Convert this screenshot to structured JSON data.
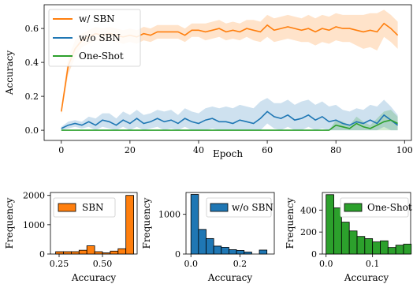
{
  "chart_data": [
    {
      "type": "line",
      "xlabel": "Epoch",
      "ylabel": "Accuracy",
      "xlim": [
        -5,
        102
      ],
      "ylim": [
        -0.06,
        0.74
      ],
      "xticks": [
        0,
        20,
        40,
        60,
        80,
        100
      ],
      "yticks": [
        0.0,
        0.2,
        0.4,
        0.6
      ],
      "legend_position": "top-left",
      "series": [
        {
          "name": "w/ SBN",
          "color": "#ff7f0e",
          "x": [
            0,
            2,
            4,
            6,
            8,
            10,
            12,
            14,
            16,
            18,
            20,
            22,
            24,
            26,
            28,
            30,
            32,
            34,
            36,
            38,
            40,
            42,
            44,
            46,
            48,
            50,
            52,
            54,
            56,
            58,
            60,
            62,
            64,
            66,
            68,
            70,
            72,
            74,
            76,
            78,
            80,
            82,
            84,
            86,
            88,
            90,
            92,
            94,
            96,
            98
          ],
          "values": [
            0.11,
            0.38,
            0.48,
            0.53,
            0.55,
            0.57,
            0.56,
            0.57,
            0.56,
            0.55,
            0.56,
            0.55,
            0.57,
            0.56,
            0.58,
            0.58,
            0.58,
            0.58,
            0.56,
            0.59,
            0.59,
            0.58,
            0.59,
            0.6,
            0.58,
            0.59,
            0.58,
            0.6,
            0.59,
            0.58,
            0.62,
            0.59,
            0.6,
            0.61,
            0.6,
            0.59,
            0.6,
            0.58,
            0.6,
            0.59,
            0.61,
            0.6,
            0.6,
            0.59,
            0.58,
            0.59,
            0.58,
            0.63,
            0.6,
            0.56
          ],
          "band_low": [
            0.09,
            0.33,
            0.43,
            0.49,
            0.51,
            0.53,
            0.52,
            0.53,
            0.52,
            0.51,
            0.52,
            0.51,
            0.53,
            0.52,
            0.54,
            0.54,
            0.54,
            0.54,
            0.52,
            0.55,
            0.55,
            0.53,
            0.54,
            0.55,
            0.53,
            0.54,
            0.53,
            0.55,
            0.53,
            0.52,
            0.55,
            0.52,
            0.53,
            0.54,
            0.53,
            0.52,
            0.52,
            0.5,
            0.52,
            0.51,
            0.53,
            0.52,
            0.52,
            0.5,
            0.48,
            0.49,
            0.47,
            0.55,
            0.52,
            0.48
          ],
          "band_high": [
            0.13,
            0.43,
            0.53,
            0.57,
            0.59,
            0.61,
            0.6,
            0.61,
            0.6,
            0.59,
            0.6,
            0.59,
            0.61,
            0.6,
            0.62,
            0.62,
            0.62,
            0.62,
            0.6,
            0.63,
            0.63,
            0.63,
            0.64,
            0.65,
            0.63,
            0.64,
            0.63,
            0.65,
            0.65,
            0.64,
            0.68,
            0.66,
            0.67,
            0.68,
            0.67,
            0.66,
            0.68,
            0.66,
            0.68,
            0.67,
            0.69,
            0.68,
            0.68,
            0.68,
            0.68,
            0.69,
            0.69,
            0.71,
            0.68,
            0.64
          ]
        },
        {
          "name": "w/o SBN",
          "color": "#1f77b4",
          "x": [
            0,
            2,
            4,
            6,
            8,
            10,
            12,
            14,
            16,
            18,
            20,
            22,
            24,
            26,
            28,
            30,
            32,
            34,
            36,
            38,
            40,
            42,
            44,
            46,
            48,
            50,
            52,
            54,
            56,
            58,
            60,
            62,
            64,
            66,
            68,
            70,
            72,
            74,
            76,
            78,
            80,
            82,
            84,
            86,
            88,
            90,
            92,
            94,
            96,
            98
          ],
          "values": [
            0.01,
            0.03,
            0.04,
            0.03,
            0.05,
            0.03,
            0.06,
            0.05,
            0.03,
            0.06,
            0.04,
            0.07,
            0.04,
            0.05,
            0.07,
            0.05,
            0.06,
            0.04,
            0.07,
            0.05,
            0.04,
            0.06,
            0.07,
            0.05,
            0.05,
            0.04,
            0.06,
            0.05,
            0.04,
            0.07,
            0.11,
            0.08,
            0.07,
            0.09,
            0.06,
            0.07,
            0.09,
            0.06,
            0.08,
            0.05,
            0.06,
            0.04,
            0.03,
            0.05,
            0.04,
            0.06,
            0.04,
            0.09,
            0.06,
            0.03
          ],
          "band_low": [
            0.0,
            0.01,
            0.02,
            0.01,
            0.02,
            0.0,
            0.02,
            0.01,
            0.0,
            0.02,
            0.0,
            0.02,
            0.0,
            0.01,
            0.02,
            0.0,
            0.01,
            0.0,
            0.02,
            0.0,
            0.0,
            0.0,
            0.01,
            0.0,
            0.0,
            0.0,
            0.0,
            0.0,
            0.0,
            0.0,
            0.04,
            0.01,
            0.0,
            0.02,
            0.0,
            0.0,
            0.02,
            0.0,
            0.01,
            0.0,
            0.0,
            0.0,
            0.0,
            0.0,
            0.0,
            0.0,
            0.0,
            0.02,
            0.0,
            0.0
          ],
          "band_high": [
            0.02,
            0.05,
            0.06,
            0.05,
            0.08,
            0.07,
            0.1,
            0.1,
            0.07,
            0.11,
            0.09,
            0.12,
            0.09,
            0.1,
            0.12,
            0.11,
            0.12,
            0.09,
            0.13,
            0.11,
            0.1,
            0.13,
            0.14,
            0.13,
            0.14,
            0.13,
            0.15,
            0.14,
            0.13,
            0.17,
            0.19,
            0.16,
            0.16,
            0.18,
            0.15,
            0.17,
            0.18,
            0.15,
            0.17,
            0.14,
            0.15,
            0.12,
            0.11,
            0.13,
            0.12,
            0.15,
            0.14,
            0.18,
            0.14,
            0.09
          ]
        },
        {
          "name": "One-Shot",
          "color": "#2ca02c",
          "x": [
            0,
            2,
            4,
            6,
            8,
            10,
            12,
            14,
            16,
            18,
            20,
            22,
            24,
            26,
            28,
            30,
            32,
            34,
            36,
            38,
            40,
            42,
            44,
            46,
            48,
            50,
            52,
            54,
            56,
            58,
            60,
            62,
            64,
            66,
            68,
            70,
            72,
            74,
            76,
            78,
            80,
            82,
            84,
            86,
            88,
            90,
            92,
            94,
            96,
            98
          ],
          "values": [
            0,
            0,
            0,
            0,
            0,
            0,
            0,
            0,
            0,
            0,
            0,
            0,
            0,
            0,
            0,
            0,
            0,
            0,
            0,
            0,
            0,
            0,
            0,
            0,
            0,
            0,
            0,
            0,
            0,
            0,
            0,
            0,
            0,
            0,
            0,
            0,
            0,
            0,
            0,
            0,
            0.03,
            0.02,
            0.01,
            0.04,
            0.02,
            0.01,
            0.03,
            0.05,
            0.06,
            0.04
          ],
          "band_low": [
            0,
            0,
            0,
            0,
            0,
            0,
            0,
            0,
            0,
            0,
            0,
            0,
            0,
            0,
            0,
            0,
            0,
            0,
            0,
            0,
            0,
            0,
            0,
            0,
            0,
            0,
            0,
            0,
            0,
            0,
            0,
            0,
            0,
            0,
            0,
            0,
            0,
            0,
            0,
            0,
            0,
            0,
            0,
            0,
            0,
            0,
            0,
            0,
            0,
            0
          ],
          "band_high": [
            0,
            0,
            0,
            0,
            0,
            0,
            0,
            0,
            0,
            0,
            0,
            0,
            0,
            0,
            0,
            0,
            0,
            0,
            0,
            0,
            0,
            0,
            0,
            0,
            0,
            0,
            0,
            0,
            0,
            0,
            0,
            0,
            0,
            0,
            0,
            0,
            0,
            0,
            0,
            0,
            0.06,
            0.05,
            0.03,
            0.08,
            0.05,
            0.03,
            0.07,
            0.11,
            0.12,
            0.08
          ]
        }
      ]
    },
    {
      "type": "bar",
      "subtype": "histogram",
      "xlabel": "Accuracy",
      "ylabel": "Frequency",
      "xlim": [
        0.2,
        0.7
      ],
      "ylim": [
        0,
        2100
      ],
      "xticks": [
        0.25,
        0.5
      ],
      "xtick_labels": [
        "0.25",
        "0.50"
      ],
      "yticks": [
        0,
        1000,
        2000
      ],
      "legend_position": "top-left",
      "series": [
        {
          "name": "SBN",
          "color": "#ff7f0e"
        }
      ],
      "bin_edges": [
        0.23,
        0.275,
        0.32,
        0.365,
        0.41,
        0.455,
        0.5,
        0.545,
        0.59,
        0.635,
        0.68
      ],
      "values": [
        80,
        80,
        80,
        130,
        280,
        80,
        40,
        100,
        180,
        2000
      ]
    },
    {
      "type": "bar",
      "subtype": "histogram",
      "xlabel": "Accuracy",
      "ylabel": "Frequency",
      "xlim": [
        -0.02,
        0.34
      ],
      "ylim": [
        0,
        1550
      ],
      "xticks": [
        0.0,
        0.2
      ],
      "xtick_labels": [
        "0.0",
        "0.2"
      ],
      "yticks": [
        0,
        1000
      ],
      "legend_position": "top-right",
      "series": [
        {
          "name": "w/o SBN",
          "color": "#1f77b4"
        }
      ],
      "bin_edges": [
        0.0,
        0.031,
        0.062,
        0.093,
        0.124,
        0.155,
        0.186,
        0.217,
        0.248,
        0.279,
        0.31
      ],
      "values": [
        1500,
        620,
        390,
        200,
        170,
        110,
        90,
        50,
        0,
        100
      ]
    },
    {
      "type": "bar",
      "subtype": "histogram",
      "xlabel": "Accuracy",
      "ylabel": "Frequency",
      "xlim": [
        -0.008,
        0.182
      ],
      "ylim": [
        0,
        560
      ],
      "xticks": [
        0.0,
        0.1
      ],
      "xtick_labels": [
        "0.0",
        "0.1"
      ],
      "yticks": [
        0,
        200,
        400
      ],
      "legend_position": "top-right",
      "series": [
        {
          "name": "One-Shot",
          "color": "#2ca02c"
        }
      ],
      "bin_edges": [
        0.0,
        0.0167,
        0.0333,
        0.05,
        0.0667,
        0.0833,
        0.1,
        0.1167,
        0.1333,
        0.15,
        0.1667,
        0.1833
      ],
      "values": [
        540,
        420,
        290,
        210,
        160,
        140,
        110,
        120,
        60,
        80,
        90
      ]
    }
  ]
}
